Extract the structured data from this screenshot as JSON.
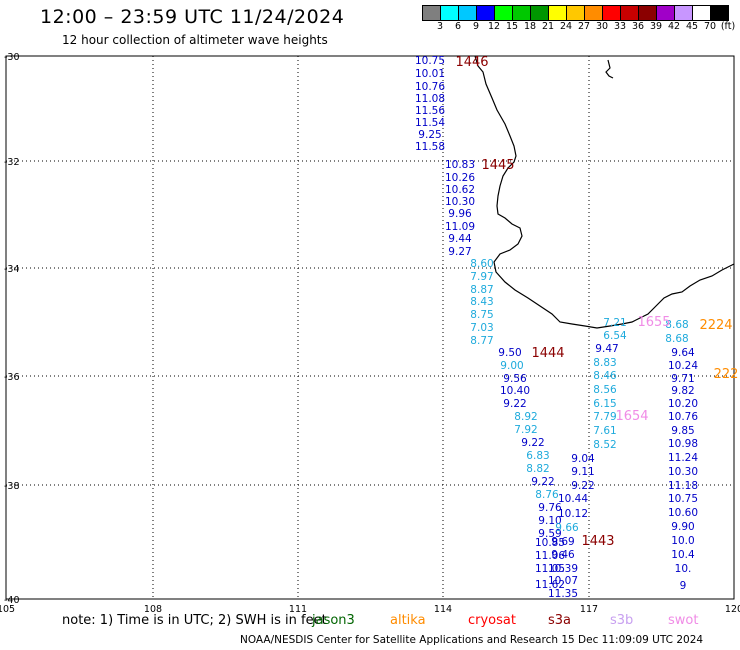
{
  "header": {
    "title": "12:00 – 23:59 UTC 11/24/2024",
    "subtitle": "12 hour collection of altimeter wave heights"
  },
  "colorbar": {
    "colors": [
      "#7f7f7f",
      "#00ffff",
      "#00c8ff",
      "#0000ff",
      "#00ff00",
      "#00c800",
      "#009600",
      "#ffff00",
      "#ffc800",
      "#ff8c00",
      "#ff0000",
      "#c80000",
      "#8b0000",
      "#a000c8",
      "#c896ff",
      "#ffffff",
      "#000000"
    ],
    "labels": [
      "3",
      "6",
      "9",
      "12",
      "15",
      "18",
      "21",
      "24",
      "27",
      "30",
      "33",
      "36",
      "39",
      "42",
      "45",
      "70",
      "(ft)"
    ]
  },
  "axes": {
    "lon_ticks": [
      "105",
      "108",
      "111",
      "114",
      "117",
      "120"
    ],
    "lat_ticks": [
      "-30",
      "-32",
      "-34",
      "-36",
      "-38",
      "-40"
    ]
  },
  "tracks": [
    {
      "color": "#0000c8",
      "x": 430,
      "values": [
        [
          60,
          "10.75"
        ],
        [
          73,
          "10.01"
        ],
        [
          86,
          "10.76"
        ],
        [
          98,
          "11.08"
        ],
        [
          110,
          "11.56"
        ],
        [
          122,
          "11.54"
        ],
        [
          134,
          "9.25"
        ],
        [
          146,
          "11.58"
        ]
      ]
    },
    {
      "color": "#0000c8",
      "x": 460,
      "values": [
        [
          164,
          "10.83"
        ],
        [
          177,
          "10.26"
        ],
        [
          189,
          "10.62"
        ],
        [
          201,
          "10.30"
        ],
        [
          213,
          "9.96"
        ],
        [
          226,
          "11.09"
        ],
        [
          238,
          "9.44"
        ],
        [
          251,
          "9.27"
        ]
      ]
    },
    {
      "color": "#1eaadc",
      "x": 482,
      "values": [
        [
          263,
          "8.60"
        ],
        [
          276,
          "7.97"
        ],
        [
          289,
          "8.87"
        ],
        [
          301,
          "8.43"
        ],
        [
          314,
          "8.75"
        ],
        [
          327,
          "7.03"
        ],
        [
          340,
          "8.77"
        ]
      ]
    },
    {
      "color": "#0000c8",
      "x": 510,
      "values": [
        [
          352,
          "9.50"
        ]
      ]
    },
    {
      "color": "#1eaadc",
      "x": 512,
      "values": [
        [
          365,
          "9.00"
        ]
      ]
    },
    {
      "color": "#0000c8",
      "x": 515,
      "values": [
        [
          378,
          "9.56"
        ],
        [
          390,
          "10.40"
        ],
        [
          403,
          "9.22"
        ]
      ]
    },
    {
      "color": "#1eaadc",
      "x": 526,
      "values": [
        [
          416,
          "8.92"
        ],
        [
          429,
          "7.92"
        ]
      ]
    },
    {
      "color": "#0000c8",
      "x": 533,
      "values": [
        [
          442,
          "9.22"
        ]
      ]
    },
    {
      "color": "#1eaadc",
      "x": 538,
      "values": [
        [
          455,
          "6.83"
        ],
        [
          468,
          "8.82"
        ]
      ]
    },
    {
      "color": "#0000c8",
      "x": 543,
      "values": [
        [
          481,
          "9.22"
        ]
      ]
    },
    {
      "color": "#1eaadc",
      "x": 547,
      "values": [
        [
          494,
          "8.76"
        ]
      ]
    },
    {
      "color": "#0000c8",
      "x": 550,
      "values": [
        [
          507,
          "9.76"
        ],
        [
          520,
          "9.10"
        ],
        [
          533,
          "9.59"
        ],
        [
          542,
          "10.85"
        ],
        [
          555,
          "11.06"
        ],
        [
          568,
          "11.05"
        ],
        [
          584,
          "11.62"
        ]
      ]
    },
    {
      "color": "#1eaadc",
      "x": 615,
      "values": [
        [
          322,
          "7.21"
        ],
        [
          335,
          "6.54"
        ]
      ]
    },
    {
      "color": "#0000c8",
      "x": 607,
      "values": [
        [
          348,
          "9.47"
        ]
      ]
    },
    {
      "color": "#1eaadc",
      "x": 605,
      "values": [
        [
          362,
          "8.83"
        ],
        [
          375,
          "8.46"
        ],
        [
          389,
          "8.56"
        ],
        [
          403,
          "6.15"
        ],
        [
          416,
          "7.79"
        ],
        [
          430,
          "7.61"
        ],
        [
          444,
          "8.52"
        ]
      ]
    },
    {
      "color": "#0000c8",
      "x": 583,
      "values": [
        [
          458,
          "9.04"
        ],
        [
          471,
          "9.11"
        ],
        [
          485,
          "9.22"
        ]
      ]
    },
    {
      "color": "#0000c8",
      "x": 573,
      "values": [
        [
          498,
          "10.44"
        ],
        [
          513,
          "10.12"
        ]
      ]
    },
    {
      "color": "#1eaadc",
      "x": 567,
      "values": [
        [
          527,
          "9.66"
        ]
      ]
    },
    {
      "color": "#0000c8",
      "x": 563,
      "values": [
        [
          541,
          "9.69"
        ],
        [
          554,
          "9.46"
        ],
        [
          568,
          "10.39"
        ],
        [
          580,
          "10.07"
        ],
        [
          593,
          "11.35"
        ]
      ]
    },
    {
      "color": "#1eaadc",
      "x": 677,
      "values": [
        [
          324,
          "8.68"
        ],
        [
          338,
          "8.68"
        ]
      ]
    },
    {
      "color": "#0000c8",
      "x": 683,
      "values": [
        [
          352,
          "9.64"
        ],
        [
          365,
          "10.24"
        ],
        [
          378,
          "9.71"
        ],
        [
          390,
          "9.82"
        ],
        [
          403,
          "10.20"
        ],
        [
          416,
          "10.76"
        ],
        [
          430,
          "9.85"
        ],
        [
          443,
          "10.98"
        ],
        [
          457,
          "11.24"
        ],
        [
          471,
          "10.30"
        ],
        [
          485,
          "11.18"
        ],
        [
          498,
          "10.75"
        ],
        [
          512,
          "10.60"
        ],
        [
          526,
          "9.90"
        ],
        [
          540,
          "10.0"
        ],
        [
          554,
          "10.4"
        ],
        [
          568,
          "10."
        ],
        [
          585,
          "9"
        ]
      ]
    }
  ],
  "pass_labels": [
    {
      "text": "1446",
      "color": "#8b0000"
    },
    {
      "text": "1445",
      "color": "#8b0000"
    },
    {
      "text": "1444",
      "color": "#8b0000"
    },
    {
      "text": "1443",
      "color": "#8b0000"
    },
    {
      "text": "1655",
      "color": "#f08ce6"
    },
    {
      "text": "1654",
      "color": "#f08ce6"
    },
    {
      "text": "2224",
      "color": "#ff8c00"
    },
    {
      "text": "222",
      "color": "#ff8c00"
    }
  ],
  "footer": {
    "note": "note:  1) Time is in UTC; 2) SWH is in feet",
    "satellites": [
      {
        "name": "jason3",
        "color": "#006400"
      },
      {
        "name": "altika",
        "color": "#ff8c00"
      },
      {
        "name": "cryosat",
        "color": "#ff0000"
      },
      {
        "name": "s3a",
        "color": "#8b0000"
      },
      {
        "name": "s3b",
        "color": "#c8a0f0"
      },
      {
        "name": "swot",
        "color": "#f08ce6"
      }
    ],
    "credit": "NOAA/NESDIS Center for Satellite Applications and Research    15 Dec 11:09:09 UTC 2024"
  }
}
